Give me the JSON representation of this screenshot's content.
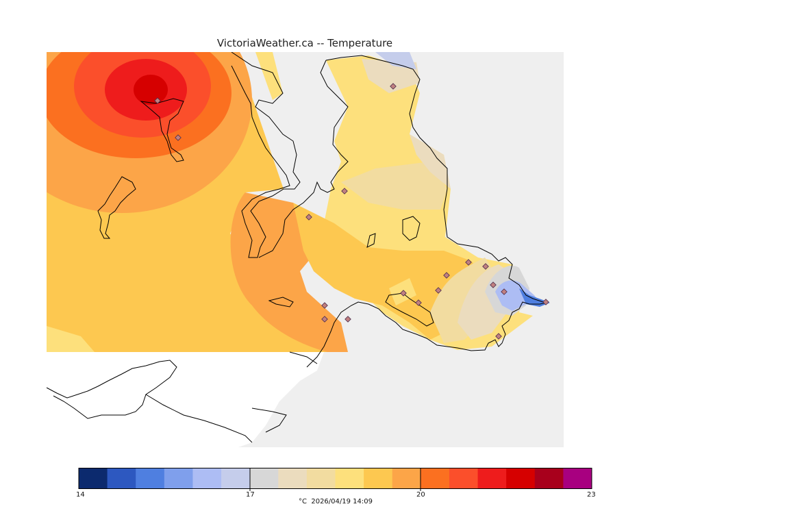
{
  "title": "VictoriaWeather.ca -- Temperature",
  "map": {
    "variable": "Temperature",
    "colors": {
      "background": "#efefef",
      "land": "#ffffff",
      "coast": "#000000",
      "station": "#c06060"
    }
  },
  "legend": {
    "colors": [
      "#0c2a6e",
      "#2d58c0",
      "#4f7fe0",
      "#7f9fec",
      "#adbdf4",
      "#c5cdeb",
      "#d7d7d7",
      "#ebdcbe",
      "#f2dca0",
      "#fde07c",
      "#fdc850",
      "#fca548",
      "#fb7020",
      "#fb4f2b",
      "#ee1c1c",
      "#d60000",
      "#a8001c",
      "#a80080"
    ],
    "tick_labels": [
      "14",
      "17",
      "20",
      "23"
    ],
    "units": "°C",
    "timestamp": "2026/04/19 14:09"
  }
}
